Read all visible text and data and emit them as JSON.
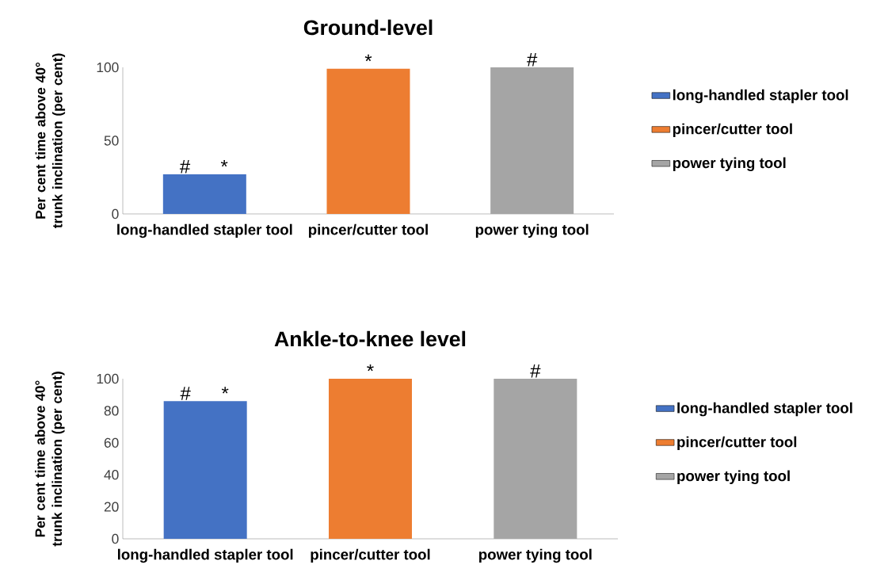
{
  "chart_data": [
    {
      "type": "bar",
      "title": "Ground-level",
      "ylabel": "Per cent time above 40° trunk inclination (per cent)",
      "categories": [
        "long-handled stapler tool",
        "pincer/cutter tool",
        "power tying tool"
      ],
      "series": [
        {
          "name": "long-handled stapler tool",
          "color": "#4472c4",
          "values": [
            27,
            null,
            null
          ]
        },
        {
          "name": "pincer/cutter tool",
          "color": "#ed7d31",
          "values": [
            null,
            99,
            null
          ]
        },
        {
          "name": "power tying tool",
          "color": "#a5a5a5",
          "values": [
            null,
            null,
            100
          ]
        }
      ],
      "ylim": [
        0,
        100
      ],
      "yticks": [
        0,
        50,
        100
      ],
      "legend": "right",
      "annotations": [
        {
          "text": "#",
          "x": "long-handled stapler tool",
          "y": 27
        },
        {
          "text": "*",
          "x": "long-handled stapler tool",
          "y": 27
        },
        {
          "text": "*",
          "x": "pincer/cutter tool",
          "y": 99
        },
        {
          "text": "#",
          "x": "power tying tool",
          "y": 100
        }
      ]
    },
    {
      "type": "bar",
      "title": "Ankle-to-knee level",
      "ylabel": "Per cent time above 40° trunk inclination (per cent)",
      "categories": [
        "long-handled stapler tool",
        "pincer/cutter tool",
        "power tying tool"
      ],
      "series": [
        {
          "name": "long-handled stapler tool",
          "color": "#4472c4",
          "values": [
            86,
            null,
            null
          ]
        },
        {
          "name": "pincer/cutter tool",
          "color": "#ed7d31",
          "values": [
            null,
            100,
            null
          ]
        },
        {
          "name": "power tying tool",
          "color": "#a5a5a5",
          "values": [
            null,
            null,
            100
          ]
        }
      ],
      "ylim": [
        0,
        100
      ],
      "yticks": [
        0,
        20,
        40,
        60,
        80,
        100
      ],
      "legend": "right",
      "annotations": [
        {
          "text": "#",
          "x": "long-handled stapler tool",
          "y": 86
        },
        {
          "text": "*",
          "x": "long-handled stapler tool",
          "y": 86
        },
        {
          "text": "*",
          "x": "pincer/cutter tool",
          "y": 100
        },
        {
          "text": "#",
          "x": "power tying tool",
          "y": 100
        }
      ]
    }
  ]
}
